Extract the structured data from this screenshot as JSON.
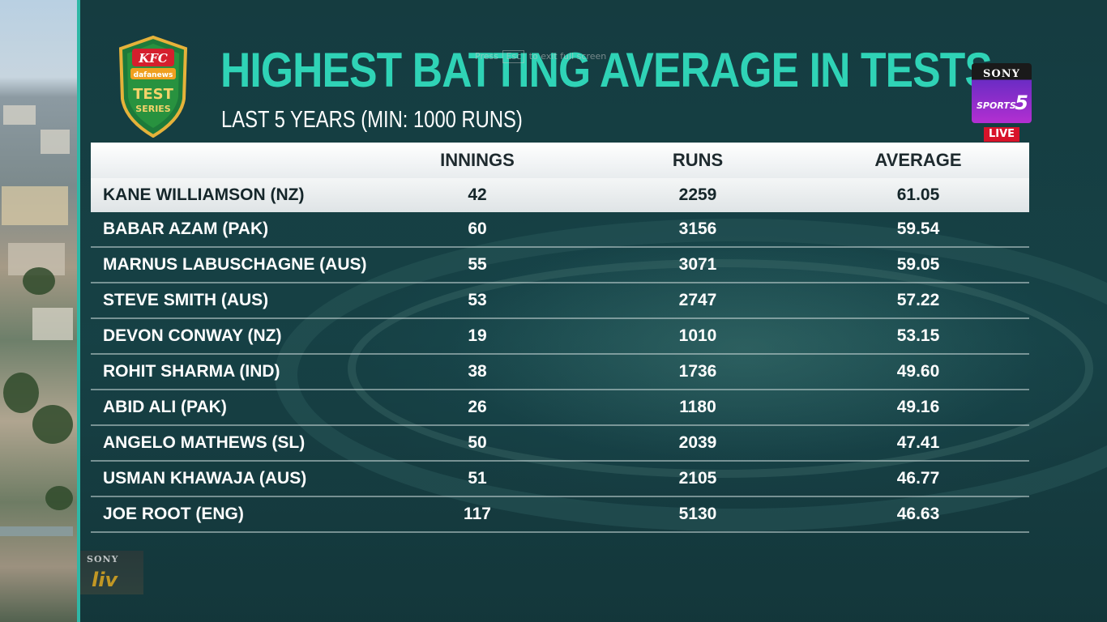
{
  "broadcast": {
    "title": "HIGHEST BATTING AVERAGE IN TESTS",
    "subtitle": "LAST 5 YEARS (MIN: 1000 RUNS)",
    "esc_hint": {
      "press": "Press",
      "key": "Esc",
      "rest": "to exit full screen"
    },
    "sponsor_logo": {
      "brand": "KFC",
      "partner": "dafanews",
      "line1": "TEST",
      "line2": "SERIES"
    },
    "channel_logo": {
      "brand": "SONY",
      "channel": "SPORTS",
      "number": "5"
    },
    "live_label": "LIVE",
    "watermark": {
      "brand": "SONY",
      "product": "liv"
    }
  },
  "colors": {
    "title": "#2fd3b6",
    "accent_strip": "#2fb7a6",
    "live_red": "#d8132a",
    "background": "#16434a",
    "highlight_row": "#f4f6f6"
  },
  "table": {
    "columns": [
      "",
      "INNINGS",
      "RUNS",
      "AVERAGE"
    ],
    "rows": [
      {
        "player": "KANE WILLIAMSON (NZ)",
        "innings": "42",
        "runs": "2259",
        "average": "61.05",
        "highlighted": true
      },
      {
        "player": "BABAR AZAM (PAK)",
        "innings": "60",
        "runs": "3156",
        "average": "59.54"
      },
      {
        "player": "MARNUS LABUSCHAGNE (AUS)",
        "innings": "55",
        "runs": "3071",
        "average": "59.05"
      },
      {
        "player": "STEVE SMITH (AUS)",
        "innings": "53",
        "runs": "2747",
        "average": "57.22"
      },
      {
        "player": "DEVON CONWAY (NZ)",
        "innings": "19",
        "runs": "1010",
        "average": "53.15"
      },
      {
        "player": "ROHIT SHARMA (IND)",
        "innings": "38",
        "runs": "1736",
        "average": "49.60"
      },
      {
        "player": "ABID ALI (PAK)",
        "innings": "26",
        "runs": "1180",
        "average": "49.16"
      },
      {
        "player": "ANGELO MATHEWS (SL)",
        "innings": "50",
        "runs": "2039",
        "average": "47.41"
      },
      {
        "player": "USMAN KHAWAJA (AUS)",
        "innings": "51",
        "runs": "2105",
        "average": "46.77"
      },
      {
        "player": "JOE ROOT (ENG)",
        "innings": "117",
        "runs": "5130",
        "average": "46.63"
      }
    ]
  }
}
